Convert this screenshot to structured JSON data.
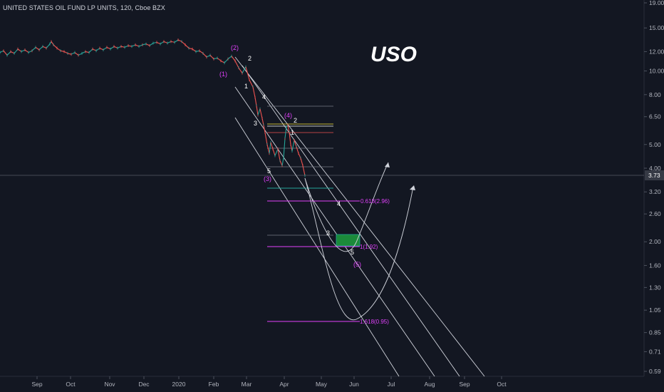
{
  "header": {
    "title": "UNITED STATES OIL FUND LP UNITS, 120, Cboe BZX"
  },
  "annotation_title": "USO",
  "current_price": "3.73",
  "colors": {
    "background": "#131722",
    "axis_text": "#b2b5be",
    "channel": "#d1d4dc",
    "magenta": "#e040fb",
    "green": "#26a69a",
    "red": "#ef5350",
    "yellow": "#ffeb3b",
    "zone_green": "#1b8a3a"
  },
  "chart_data": {
    "type": "line",
    "title": "",
    "xlabel": "",
    "ylabel": "",
    "y_scale": "log",
    "ylim": [
      0.59,
      19.0
    ],
    "y_ticks": [
      "0.59",
      "0.71",
      "0.85",
      "1.05",
      "1.30",
      "1.60",
      "2.00",
      "2.60",
      "3.20",
      "4.00",
      "5.00",
      "6.50",
      "8.00",
      "10.00",
      "12.00",
      "15.00",
      "19.00"
    ],
    "x_ticks": [
      "Sep",
      "Oct",
      "Nov",
      "Dec",
      "2020",
      "Feb",
      "Mar",
      "Apr",
      "May",
      "Jun",
      "Jul",
      "Aug",
      "Sep",
      "Oct"
    ],
    "grid": false,
    "series": [
      {
        "name": "",
        "values": [
          [
            0,
            11.9
          ],
          [
            5,
            12.1
          ],
          [
            10,
            11.6
          ],
          [
            15,
            12.0
          ],
          [
            20,
            11.8
          ],
          [
            25,
            12.3
          ],
          [
            30,
            12.0
          ],
          [
            35,
            12.2
          ],
          [
            40,
            11.9
          ],
          [
            45,
            12.1
          ],
          [
            50,
            12.5
          ],
          [
            55,
            12.2
          ],
          [
            60,
            12.6
          ],
          [
            65,
            12.4
          ],
          [
            70,
            12.9
          ],
          [
            72,
            13.2
          ],
          [
            75,
            12.8
          ],
          [
            80,
            12.4
          ],
          [
            85,
            12.1
          ],
          [
            90,
            12.0
          ],
          [
            95,
            11.8
          ],
          [
            100,
            11.7
          ],
          [
            105,
            11.9
          ],
          [
            110,
            11.6
          ],
          [
            115,
            11.8
          ],
          [
            120,
            12.0
          ],
          [
            125,
            11.9
          ],
          [
            130,
            12.3
          ],
          [
            135,
            12.1
          ],
          [
            140,
            12.4
          ],
          [
            145,
            12.2
          ],
          [
            150,
            12.5
          ],
          [
            155,
            12.3
          ],
          [
            160,
            12.6
          ],
          [
            165,
            12.4
          ],
          [
            170,
            12.6
          ],
          [
            175,
            12.5
          ],
          [
            180,
            12.7
          ],
          [
            185,
            12.6
          ],
          [
            190,
            12.8
          ],
          [
            195,
            12.6
          ],
          [
            200,
            12.8
          ],
          [
            205,
            12.9
          ],
          [
            210,
            12.7
          ],
          [
            215,
            13.0
          ],
          [
            220,
            13.1
          ],
          [
            225,
            12.9
          ],
          [
            230,
            13.2
          ],
          [
            235,
            13.0
          ],
          [
            240,
            13.2
          ],
          [
            245,
            13.1
          ],
          [
            250,
            13.4
          ],
          [
            255,
            13.2
          ],
          [
            260,
            12.8
          ],
          [
            265,
            12.4
          ],
          [
            270,
            12.3
          ],
          [
            275,
            12.0
          ],
          [
            280,
            12.1
          ],
          [
            285,
            11.8
          ],
          [
            290,
            11.4
          ],
          [
            295,
            11.6
          ],
          [
            300,
            11.2
          ],
          [
            305,
            11.3
          ],
          [
            310,
            11.0
          ],
          [
            315,
            10.8
          ],
          [
            320,
            11.2
          ],
          [
            325,
            11.5
          ],
          [
            330,
            11.0
          ],
          [
            335,
            10.3
          ],
          [
            340,
            9.8
          ],
          [
            345,
            10.4
          ],
          [
            350,
            9.2
          ],
          [
            355,
            8.6
          ],
          [
            358,
            7.8
          ],
          [
            360,
            7.2
          ],
          [
            362,
            6.6
          ],
          [
            365,
            7.0
          ],
          [
            368,
            6.4
          ],
          [
            370,
            6.0
          ],
          [
            372,
            5.6
          ],
          [
            375,
            5.0
          ],
          [
            378,
            4.6
          ],
          [
            380,
            5.1
          ],
          [
            383,
            4.8
          ],
          [
            386,
            4.5
          ],
          [
            390,
            4.8
          ],
          [
            393,
            4.3
          ],
          [
            396,
            4.1
          ],
          [
            398,
            4.4
          ],
          [
            400,
            5.3
          ],
          [
            402,
            5.9
          ],
          [
            404,
            6.0
          ],
          [
            406,
            5.6
          ],
          [
            408,
            5.0
          ],
          [
            410,
            4.7
          ],
          [
            413,
            5.2
          ],
          [
            416,
            4.9
          ],
          [
            419,
            4.6
          ],
          [
            422,
            4.4
          ],
          [
            425,
            4.1
          ],
          [
            428,
            3.73
          ]
        ]
      }
    ],
    "wave_labels_primary": [
      "2",
      "1",
      "4",
      "3",
      "5",
      "1",
      "2",
      "3",
      "4",
      "5"
    ],
    "wave_labels_major": [
      "(2)",
      "(1)",
      "(3)",
      "(4)",
      "(5)"
    ],
    "fib_labels": [
      "0.618(2.96)",
      "1(1.92)",
      "1.618(0.95)"
    ]
  }
}
